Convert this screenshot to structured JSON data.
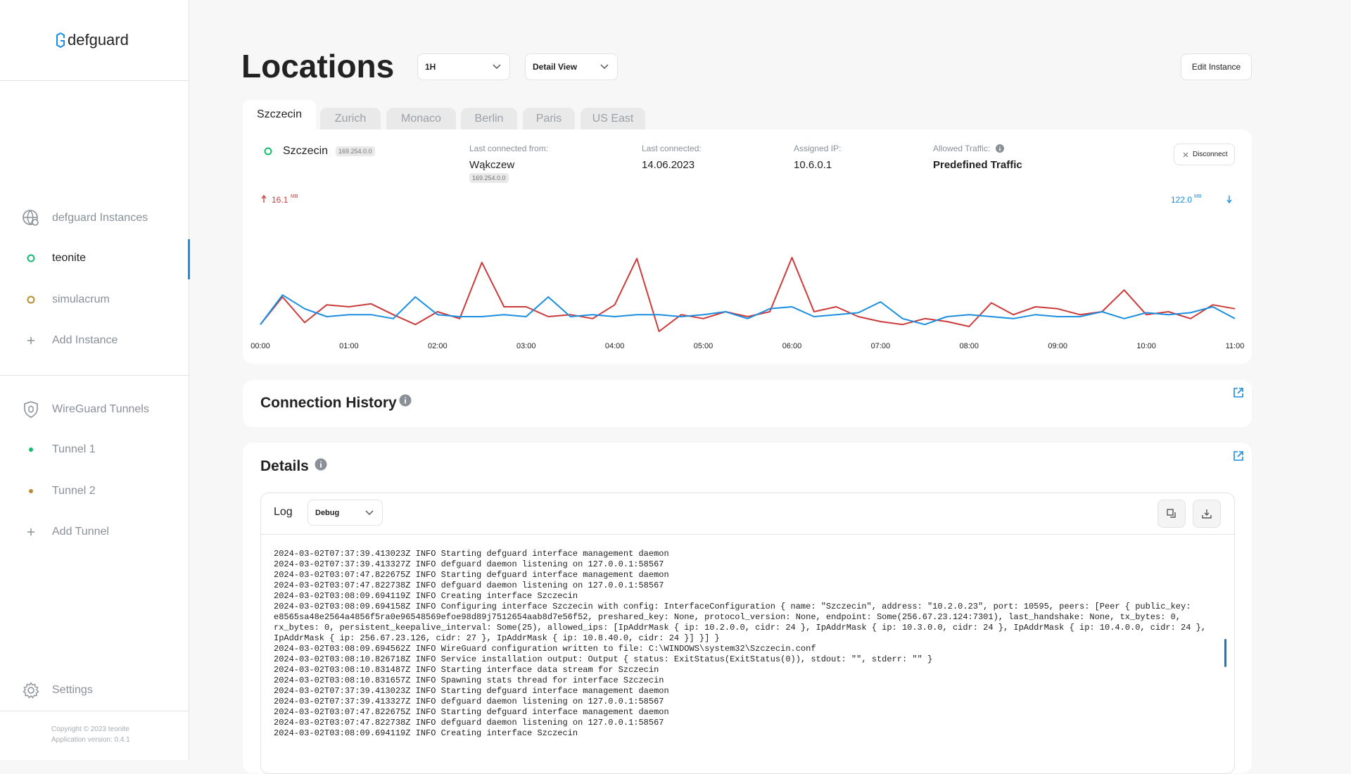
{
  "sidebar": {
    "logo": "defguard",
    "instances_title": "defguard Instances",
    "instances": [
      "teonite",
      "simulacrum"
    ],
    "add_instance": "Add Instance",
    "tunnels_title": "WireGuard Tunnels",
    "tunnels": [
      "Tunnel 1",
      "Tunnel 2"
    ],
    "add_tunnel": "Add Tunnel",
    "settings": "Settings",
    "copyright": "Copyright © 2023 teonite",
    "version": "Application version: 0.4.1"
  },
  "header": {
    "title": "Locations",
    "range": "1H",
    "view": "Detail View",
    "edit_button": "Edit Instance"
  },
  "tabs": [
    "Szczecin",
    "Zurich",
    "Monaco",
    "Berlin",
    "Paris",
    "US East"
  ],
  "location": {
    "name": "Szczecin",
    "ip": "169.254.0.0",
    "last_connected_from_label": "Last connected from:",
    "last_connected_from": "Wąkczew",
    "last_connected_from_ip": "169.254.0.0",
    "last_connected_label": "Last connected:",
    "last_connected": "14.06.2023",
    "assigned_ip_label": "Assigned IP:",
    "assigned_ip": "10.6.0.1",
    "allowed_traffic_label": "Allowed Traffic:",
    "allowed_traffic": "Predefined Traffic",
    "disconnect": "Disconnect"
  },
  "chart_data": {
    "type": "line",
    "upload_total": "16.1",
    "download_total": "122.0",
    "unit": "MB",
    "x": [
      0,
      0.25,
      0.5,
      0.75,
      1,
      1.25,
      1.5,
      1.75,
      2,
      2.25,
      2.5,
      2.75,
      3,
      3.25,
      3.5,
      3.75,
      4,
      4.25,
      4.5,
      4.75,
      5,
      5.25,
      5.5,
      5.75,
      6,
      6.25,
      6.5,
      6.75,
      7,
      7.25,
      7.5,
      7.75,
      8,
      8.25,
      8.5,
      8.75,
      9,
      9.25,
      9.5,
      9.75,
      10,
      10.25,
      10.5,
      10.75,
      11
    ],
    "xlim": [
      0,
      11
    ],
    "xticks": [
      {
        "value": 0,
        "label": "00:00"
      },
      {
        "value": 1,
        "label": "01:00"
      },
      {
        "value": 2,
        "label": "02:00"
      },
      {
        "value": 3,
        "label": "03:00"
      },
      {
        "value": 4,
        "label": "04:00"
      },
      {
        "value": 5,
        "label": "05:00"
      },
      {
        "value": 6,
        "label": "06:00"
      },
      {
        "value": 7,
        "label": "07:00"
      },
      {
        "value": 8,
        "label": "08:00"
      },
      {
        "value": 9,
        "label": "09:00"
      },
      {
        "value": 10,
        "label": "10:00"
      },
      {
        "value": 11,
        "label": "11:00"
      }
    ],
    "series": [
      {
        "color": "#cb3b3b",
        "values": [
          12,
          40,
          14,
          32,
          30,
          33,
          22,
          12,
          25,
          18,
          75,
          30,
          30,
          20,
          22,
          18,
          32,
          79,
          5,
          22,
          18,
          25,
          20,
          25,
          80,
          25,
          30,
          20,
          15,
          12,
          18,
          15,
          10,
          34,
          22,
          30,
          28,
          22,
          25,
          47,
          22,
          25,
          18,
          32,
          28
        ]
      },
      {
        "color": "#1b8ee0",
        "values": [
          12,
          42,
          28,
          20,
          22,
          22,
          18,
          40,
          22,
          20,
          20,
          22,
          20,
          40,
          20,
          22,
          20,
          22,
          22,
          20,
          22,
          25,
          18,
          28,
          30,
          20,
          22,
          24,
          35,
          18,
          12,
          20,
          22,
          20,
          18,
          22,
          20,
          20,
          25,
          18,
          24,
          22,
          24,
          30,
          18
        ]
      }
    ]
  },
  "connection_history": {
    "title": "Connection History"
  },
  "details": {
    "title": "Details",
    "log_label": "Log",
    "log_level": "Debug",
    "log_lines": [
      "2024-03-02T07:37:39.413023Z INFO Starting defguard interface management daemon",
      "2024-03-02T07:37:39.413327Z INFO defguard daemon listening on 127.0.0.1:58567",
      "2024-03-02T03:07:47.822675Z INFO Starting defguard interface management daemon",
      "2024-03-02T03:07:47.822738Z INFO defguard daemon listening on 127.0.0.1:58567",
      "2024-03-02T03:08:09.694119Z INFO Creating interface Szczecin",
      "2024-03-02T03:08:09.694158Z INFO Configuring interface Szczecin with config: InterfaceConfiguration { name: \"Szczecin\", address: \"10.2.0.23\", port: 10595, peers: [Peer { public_key: e8565sa48e2564a4856f5ra0e96548569efoe98d89j7512654aab8d7e56f52, preshared_key: None, protocol_version: None, endpoint: Some(256.67.23.124:7301), last_handshake: None, tx_bytes: 0, rx_bytes: 0, persistent_keepalive_interval: Some(25), allowed_ips: [IpAddrMask { ip: 10.2.0.0, cidr: 24 }, IpAddrMask { ip: 10.3.0.0, cidr: 24 }, IpAddrMask { ip: 10.4.0.0, cidr: 24 }, IpAddrMask { ip: 256.67.23.126, cidr: 27 }, IpAddrMask { ip: 10.8.40.0, cidr: 24 }] }] }",
      "2024-03-02T03:08:09.694562Z INFO WireGuard configuration written to file: C:\\WINDOWS\\system32\\Szczecin.conf",
      "2024-03-02T03:08:10.826718Z INFO Service installation output: Output { status: ExitStatus(ExitStatus(0)), stdout: \"\", stderr: \"\" }",
      "2024-03-02T03:08:10.831487Z INFO Starting interface data stream for Szczecin",
      "2024-03-02T03:08:10.831657Z INFO Spawning stats thread for interface Szczecin",
      "2024-03-02T07:37:39.413023Z INFO Starting defguard interface management daemon",
      "2024-03-02T07:37:39.413327Z INFO defguard daemon listening on 127.0.0.1:58567",
      "2024-03-02T03:07:47.822675Z INFO Starting defguard interface management daemon",
      "2024-03-02T03:07:47.822738Z INFO defguard daemon listening on 127.0.0.1:58567",
      "2024-03-02T03:08:09.694119Z INFO Creating interface Szczecin"
    ]
  }
}
